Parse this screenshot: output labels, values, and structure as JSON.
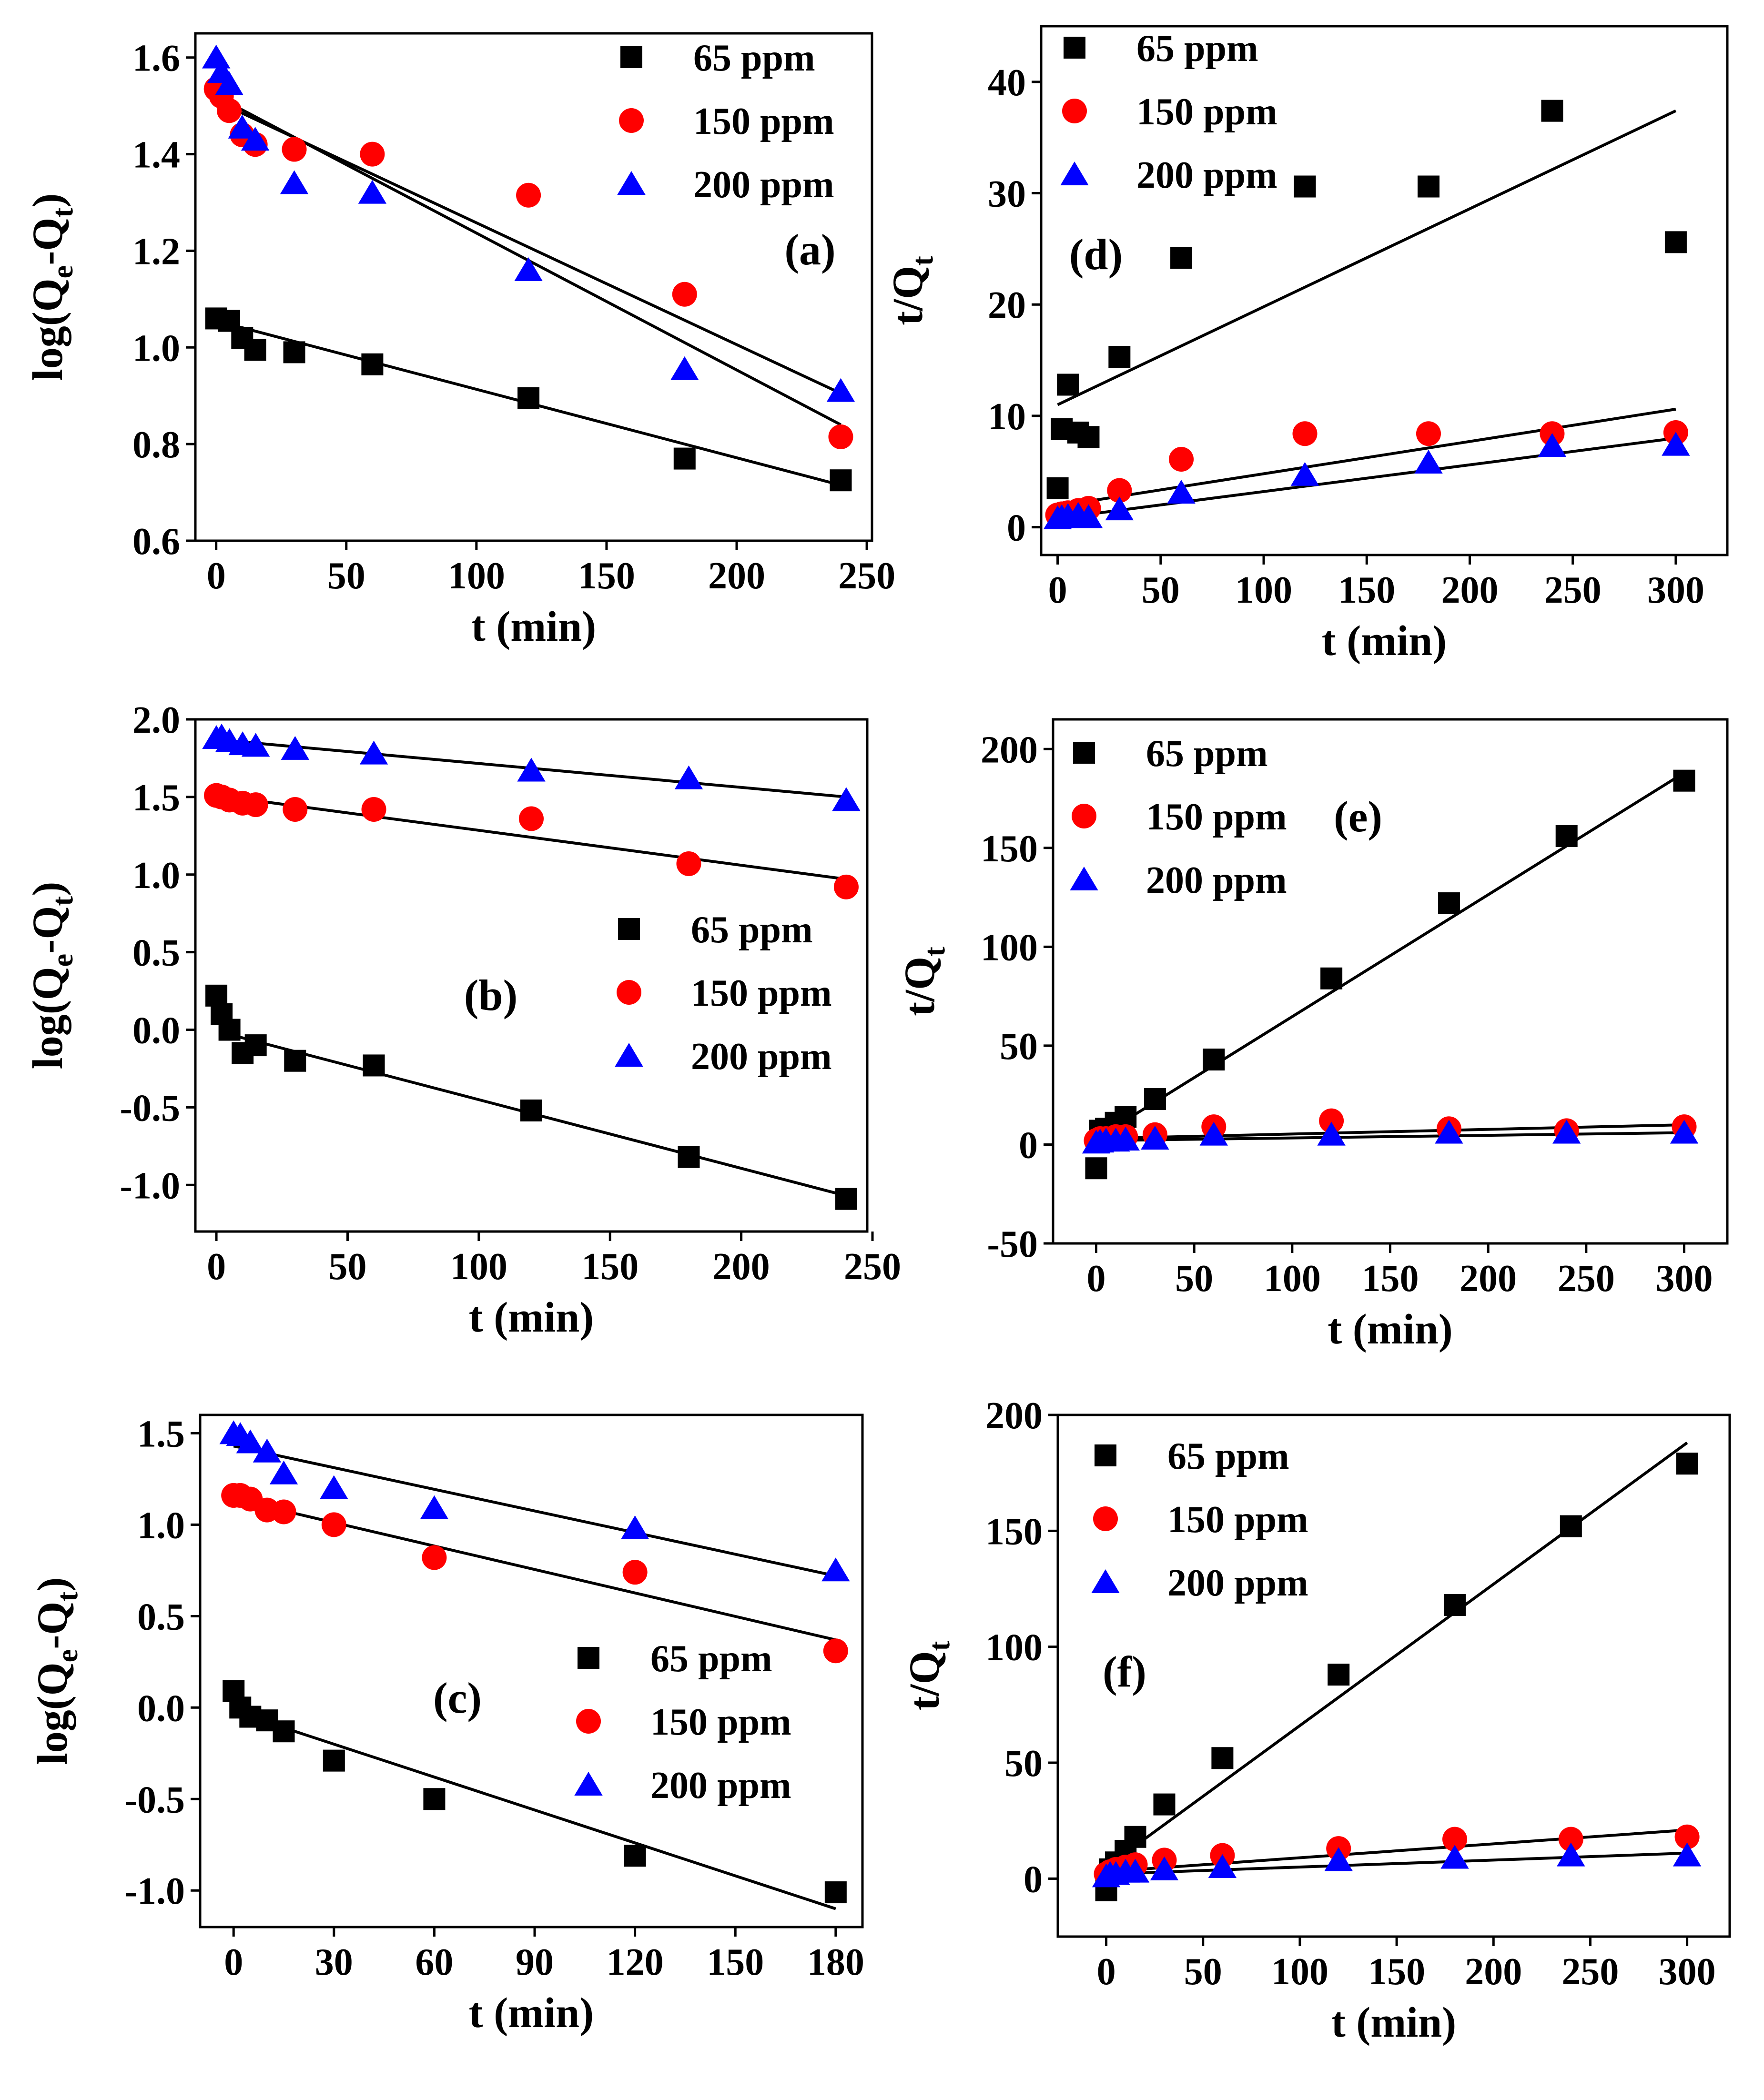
{
  "chart_data": [
    {
      "id": "a",
      "type": "scatter",
      "panel_label": "(a)",
      "xlabel": "t (min)",
      "ylabel": {
        "base": "log(Q",
        "sub1": "e",
        "mid": "-Q",
        "sub2": "t",
        "end": ")"
      },
      "xlim": [
        -8,
        252
      ],
      "ylim": [
        0.6,
        1.65
      ],
      "xticks": [
        0,
        50,
        100,
        150,
        200,
        250
      ],
      "yticks": [
        0.6,
        0.8,
        1.0,
        1.2,
        1.4,
        1.6
      ],
      "ytick_decimals": 1,
      "legend": {
        "position": "top-right"
      },
      "series": [
        {
          "name": "65 ppm",
          "marker": "square",
          "color": "#000000",
          "x": [
            0,
            5,
            10,
            15,
            30,
            60,
            120,
            180,
            240
          ],
          "y": [
            1.06,
            1.055,
            1.02,
            0.995,
            0.99,
            0.965,
            0.895,
            0.77,
            0.725
          ],
          "fit": [
            [
              0,
              1.055
            ],
            [
              240,
              0.715
            ]
          ]
        },
        {
          "name": "150 ppm",
          "marker": "circle",
          "color": "#ff0000",
          "x": [
            0,
            2,
            5,
            10,
            15,
            30,
            60,
            120,
            180,
            240
          ],
          "y": [
            1.535,
            1.52,
            1.49,
            1.44,
            1.42,
            1.41,
            1.4,
            1.315,
            1.11,
            0.815
          ],
          "fit": [
            [
              0,
              1.52
            ],
            [
              240,
              0.84
            ]
          ]
        },
        {
          "name": "200 ppm",
          "marker": "triangle",
          "color": "#0000ff",
          "x": [
            0,
            2,
            5,
            10,
            15,
            30,
            60,
            120,
            180,
            240
          ],
          "y": [
            1.6,
            1.57,
            1.545,
            1.455,
            1.43,
            1.34,
            1.32,
            1.16,
            0.955,
            0.91
          ],
          "fit": [
            [
              0,
              1.51
            ],
            [
              240,
              0.905
            ]
          ]
        }
      ]
    },
    {
      "id": "b",
      "type": "scatter",
      "panel_label": "(b)",
      "xlabel": "t (min)",
      "ylabel": {
        "base": "log(Q",
        "sub1": "e",
        "mid": "-Q",
        "sub2": "t",
        "end": ")"
      },
      "xlim": [
        -8,
        248
      ],
      "ylim": [
        -1.3,
        2.0
      ],
      "xticks": [
        0,
        50,
        100,
        150,
        200,
        250
      ],
      "yticks": [
        -1.0,
        -0.5,
        0.0,
        0.5,
        1.0,
        1.5,
        2.0
      ],
      "ytick_decimals": 1,
      "legend": {
        "position": "middle-right"
      },
      "series": [
        {
          "name": "65 ppm",
          "marker": "square",
          "color": "#000000",
          "x": [
            0,
            2,
            5,
            10,
            15,
            30,
            60,
            120,
            180,
            240
          ],
          "y": [
            0.22,
            0.1,
            0.0,
            -0.15,
            -0.1,
            -0.2,
            -0.23,
            -0.52,
            -0.82,
            -1.09
          ],
          "fit": [
            [
              5,
              -0.03
            ],
            [
              240,
              -1.07
            ]
          ]
        },
        {
          "name": "150 ppm",
          "marker": "circle",
          "color": "#ff0000",
          "x": [
            0,
            2,
            5,
            10,
            15,
            30,
            60,
            120,
            180,
            240
          ],
          "y": [
            1.51,
            1.5,
            1.48,
            1.46,
            1.45,
            1.42,
            1.42,
            1.36,
            1.07,
            0.92
          ],
          "fit": [
            [
              0,
              1.51
            ],
            [
              240,
              0.97
            ]
          ]
        },
        {
          "name": "200 ppm",
          "marker": "triangle",
          "color": "#0000ff",
          "x": [
            0,
            2,
            5,
            10,
            15,
            30,
            60,
            120,
            180,
            240
          ],
          "y": [
            1.88,
            1.89,
            1.86,
            1.84,
            1.83,
            1.81,
            1.78,
            1.67,
            1.62,
            1.48
          ],
          "fit": [
            [
              0,
              1.87
            ],
            [
              240,
              1.5
            ]
          ]
        }
      ]
    },
    {
      "id": "c",
      "type": "scatter",
      "panel_label": "(c)",
      "xlabel": "t (min)",
      "ylabel": {
        "base": "log(Q",
        "sub1": "e",
        "mid": "-Q",
        "sub2": "t",
        "end": ")"
      },
      "xlim": [
        -10,
        188
      ],
      "ylim": [
        -1.2,
        1.6
      ],
      "xticks": [
        0,
        30,
        60,
        90,
        120,
        150,
        180
      ],
      "yticks": [
        -1.0,
        -0.5,
        0.0,
        0.5,
        1.0,
        1.5
      ],
      "ytick_decimals": 1,
      "legend": {
        "position": "middle-right"
      },
      "series": [
        {
          "name": "65 ppm",
          "marker": "square",
          "color": "#000000",
          "x": [
            0,
            2,
            5,
            10,
            15,
            30,
            60,
            120,
            180
          ],
          "y": [
            0.09,
            0.0,
            -0.05,
            -0.07,
            -0.13,
            -0.29,
            -0.5,
            -0.81,
            -1.01
          ],
          "fit": [
            [
              0,
              -0.02
            ],
            [
              180,
              -1.1
            ]
          ]
        },
        {
          "name": "150 ppm",
          "marker": "circle",
          "color": "#ff0000",
          "x": [
            0,
            2,
            5,
            10,
            15,
            30,
            60,
            120,
            180
          ],
          "y": [
            1.16,
            1.16,
            1.14,
            1.08,
            1.07,
            1.0,
            0.82,
            0.74,
            0.31
          ],
          "fit": [
            [
              0,
              1.14
            ],
            [
              180,
              0.37
            ]
          ]
        },
        {
          "name": "200 ppm",
          "marker": "triangle",
          "color": "#0000ff",
          "x": [
            0,
            2,
            5,
            10,
            15,
            30,
            60,
            120,
            180
          ],
          "y": [
            1.5,
            1.49,
            1.45,
            1.4,
            1.28,
            1.2,
            1.09,
            0.98,
            0.75
          ],
          "fit": [
            [
              0,
              1.43
            ],
            [
              180,
              0.72
            ]
          ]
        }
      ]
    },
    {
      "id": "d",
      "type": "scatter",
      "panel_label": "(d)",
      "xlabel": "t (min)",
      "ylabel": {
        "base": "t/Q",
        "sub1": "t",
        "mid": "",
        "sub2": "",
        "end": ""
      },
      "xlim": [
        -8,
        325
      ],
      "ylim": [
        -2.5,
        45
      ],
      "xticks": [
        0,
        50,
        100,
        150,
        200,
        250,
        300
      ],
      "yticks": [
        0,
        10,
        20,
        30,
        40
      ],
      "ytick_decimals": 0,
      "legend": {
        "position": "top-left"
      },
      "series": [
        {
          "name": "65 ppm",
          "marker": "square",
          "color": "#000000",
          "x": [
            0,
            2,
            5,
            10,
            15,
            30,
            60,
            120,
            180,
            240,
            300
          ],
          "y": [
            3.5,
            8.8,
            12.8,
            8.5,
            8.1,
            15.3,
            24.2,
            30.6,
            30.6,
            37.4,
            25.6
          ],
          "fit": [
            [
              0,
              11.0
            ],
            [
              300,
              37.4
            ]
          ]
        },
        {
          "name": "150 ppm",
          "marker": "circle",
          "color": "#ff0000",
          "x": [
            0,
            2,
            5,
            10,
            15,
            30,
            60,
            120,
            180,
            240,
            300
          ],
          "y": [
            1.1,
            1.2,
            1.3,
            1.5,
            1.7,
            3.3,
            6.1,
            8.4,
            8.4,
            8.4,
            8.5
          ],
          "fit": [
            [
              0,
              1.9
            ],
            [
              300,
              10.6
            ]
          ]
        },
        {
          "name": "200 ppm",
          "marker": "triangle",
          "color": "#0000ff",
          "x": [
            0,
            2,
            5,
            10,
            15,
            30,
            60,
            120,
            180,
            240,
            300
          ],
          "y": [
            0.8,
            0.9,
            1.0,
            1.1,
            0.9,
            1.6,
            3.1,
            4.7,
            5.8,
            7.3,
            7.4
          ],
          "fit": [
            [
              0,
              0.8
            ],
            [
              300,
              8.0
            ]
          ]
        }
      ]
    },
    {
      "id": "e",
      "type": "scatter",
      "panel_label": "(e)",
      "xlabel": "t (min)",
      "ylabel": {
        "base": "t/Q",
        "sub1": "t",
        "mid": "",
        "sub2": "",
        "end": ""
      },
      "xlim": [
        -22,
        322
      ],
      "ylim": [
        -50,
        215
      ],
      "xticks": [
        0,
        50,
        100,
        150,
        200,
        250,
        300
      ],
      "yticks": [
        -50,
        0,
        50,
        100,
        150,
        200
      ],
      "ytick_decimals": 0,
      "legend": {
        "position": "top-left"
      },
      "series": [
        {
          "name": "65 ppm",
          "marker": "square",
          "color": "#000000",
          "x": [
            0,
            2,
            5,
            10,
            15,
            30,
            60,
            120,
            180,
            240,
            300
          ],
          "y": [
            -12,
            7,
            8,
            11,
            14,
            23,
            43,
            84,
            122,
            156,
            184
          ],
          "fit": [
            [
              0,
              3
            ],
            [
              300,
              188
            ]
          ]
        },
        {
          "name": "150 ppm",
          "marker": "circle",
          "color": "#ff0000",
          "x": [
            0,
            2,
            5,
            10,
            15,
            30,
            60,
            120,
            180,
            240,
            300
          ],
          "y": [
            2,
            3,
            3,
            4,
            4,
            5,
            9,
            12,
            8,
            7,
            9
          ],
          "fit": [
            [
              0,
              3
            ],
            [
              300,
              10
            ]
          ]
        },
        {
          "name": "200 ppm",
          "marker": "triangle",
          "color": "#0000ff",
          "x": [
            0,
            2,
            5,
            10,
            15,
            30,
            60,
            120,
            180,
            240,
            300
          ],
          "y": [
            1,
            1.5,
            2,
            2,
            2.5,
            3,
            5,
            5,
            6,
            6,
            6
          ],
          "fit": [
            [
              0,
              2
            ],
            [
              300,
              6
            ]
          ]
        }
      ]
    },
    {
      "id": "f",
      "type": "scatter",
      "panel_label": "(f)",
      "xlabel": "t (min)",
      "ylabel": {
        "base": "t/Q",
        "sub1": "t",
        "mid": "",
        "sub2": "",
        "end": ""
      },
      "xlim": [
        -25,
        322
      ],
      "ylim": [
        -25,
        200
      ],
      "xticks": [
        0,
        50,
        100,
        150,
        200,
        250,
        300
      ],
      "yticks": [
        0,
        50,
        100,
        150,
        200
      ],
      "ytick_decimals": 0,
      "legend": {
        "position": "top-left"
      },
      "series": [
        {
          "name": "65 ppm",
          "marker": "square",
          "color": "#000000",
          "x": [
            0,
            2,
            5,
            10,
            15,
            30,
            60,
            120,
            180,
            240,
            300
          ],
          "y": [
            -5,
            4,
            7,
            12,
            18,
            32,
            52,
            88,
            118,
            152,
            179
          ],
          "fit": [
            [
              0,
              5
            ],
            [
              300,
              188
            ]
          ]
        },
        {
          "name": "150 ppm",
          "marker": "circle",
          "color": "#ff0000",
          "x": [
            0,
            2,
            5,
            10,
            15,
            30,
            60,
            120,
            180,
            240,
            300
          ],
          "y": [
            2,
            3,
            4,
            5,
            6,
            8,
            10,
            13,
            17,
            17,
            18
          ],
          "fit": [
            [
              0,
              3
            ],
            [
              300,
              21
            ]
          ]
        },
        {
          "name": "200 ppm",
          "marker": "triangle",
          "color": "#0000ff",
          "x": [
            0,
            2,
            5,
            10,
            15,
            30,
            60,
            120,
            180,
            240,
            300
          ],
          "y": [
            1,
            2,
            2,
            3,
            3,
            4,
            5,
            8,
            9,
            10,
            10
          ],
          "fit": [
            [
              0,
              2
            ],
            [
              300,
              11
            ]
          ]
        }
      ]
    }
  ]
}
